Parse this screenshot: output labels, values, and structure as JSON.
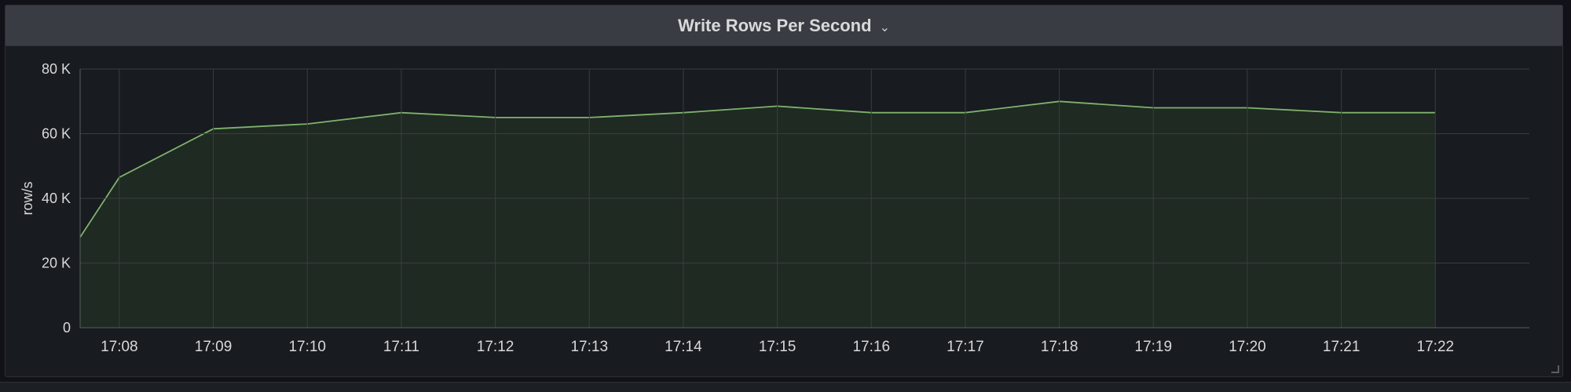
{
  "panel": {
    "title": "Write Rows Per Second",
    "menu_icon": "chevron-down-icon"
  },
  "colors": {
    "background": "#181b1f",
    "header": "#393c42",
    "grid": "#3a3d42",
    "series_line": "#7eb26d",
    "series_fill": "#1f2a22",
    "text": "#d8d9da"
  },
  "chart_data": {
    "type": "area",
    "title": "Write Rows Per Second",
    "xlabel": "",
    "ylabel": "row/s",
    "grid": true,
    "legend": "none",
    "ylim": [
      0,
      80000
    ],
    "yticks": [
      0,
      20000,
      40000,
      60000,
      80000
    ],
    "ytick_labels": [
      "0",
      "20 K",
      "40 K",
      "60 K",
      "80 K"
    ],
    "xlim": [
      "17:07:35",
      "17:23:00"
    ],
    "xtick_labels": [
      "17:08",
      "17:09",
      "17:10",
      "17:11",
      "17:12",
      "17:13",
      "17:14",
      "17:15",
      "17:16",
      "17:17",
      "17:18",
      "17:19",
      "17:20",
      "17:21",
      "17:22"
    ],
    "series": [
      {
        "x": [
          "17:07:35",
          "17:08",
          "17:09",
          "17:10",
          "17:11",
          "17:12",
          "17:13",
          "17:14",
          "17:15",
          "17:16",
          "17:17",
          "17:18",
          "17:19",
          "17:20",
          "17:21",
          "17:22"
        ],
        "values": [
          28000,
          46500,
          61500,
          63000,
          66500,
          65000,
          65000,
          66500,
          68500,
          66500,
          66500,
          70000,
          68000,
          68000,
          66500,
          66500
        ]
      }
    ]
  }
}
